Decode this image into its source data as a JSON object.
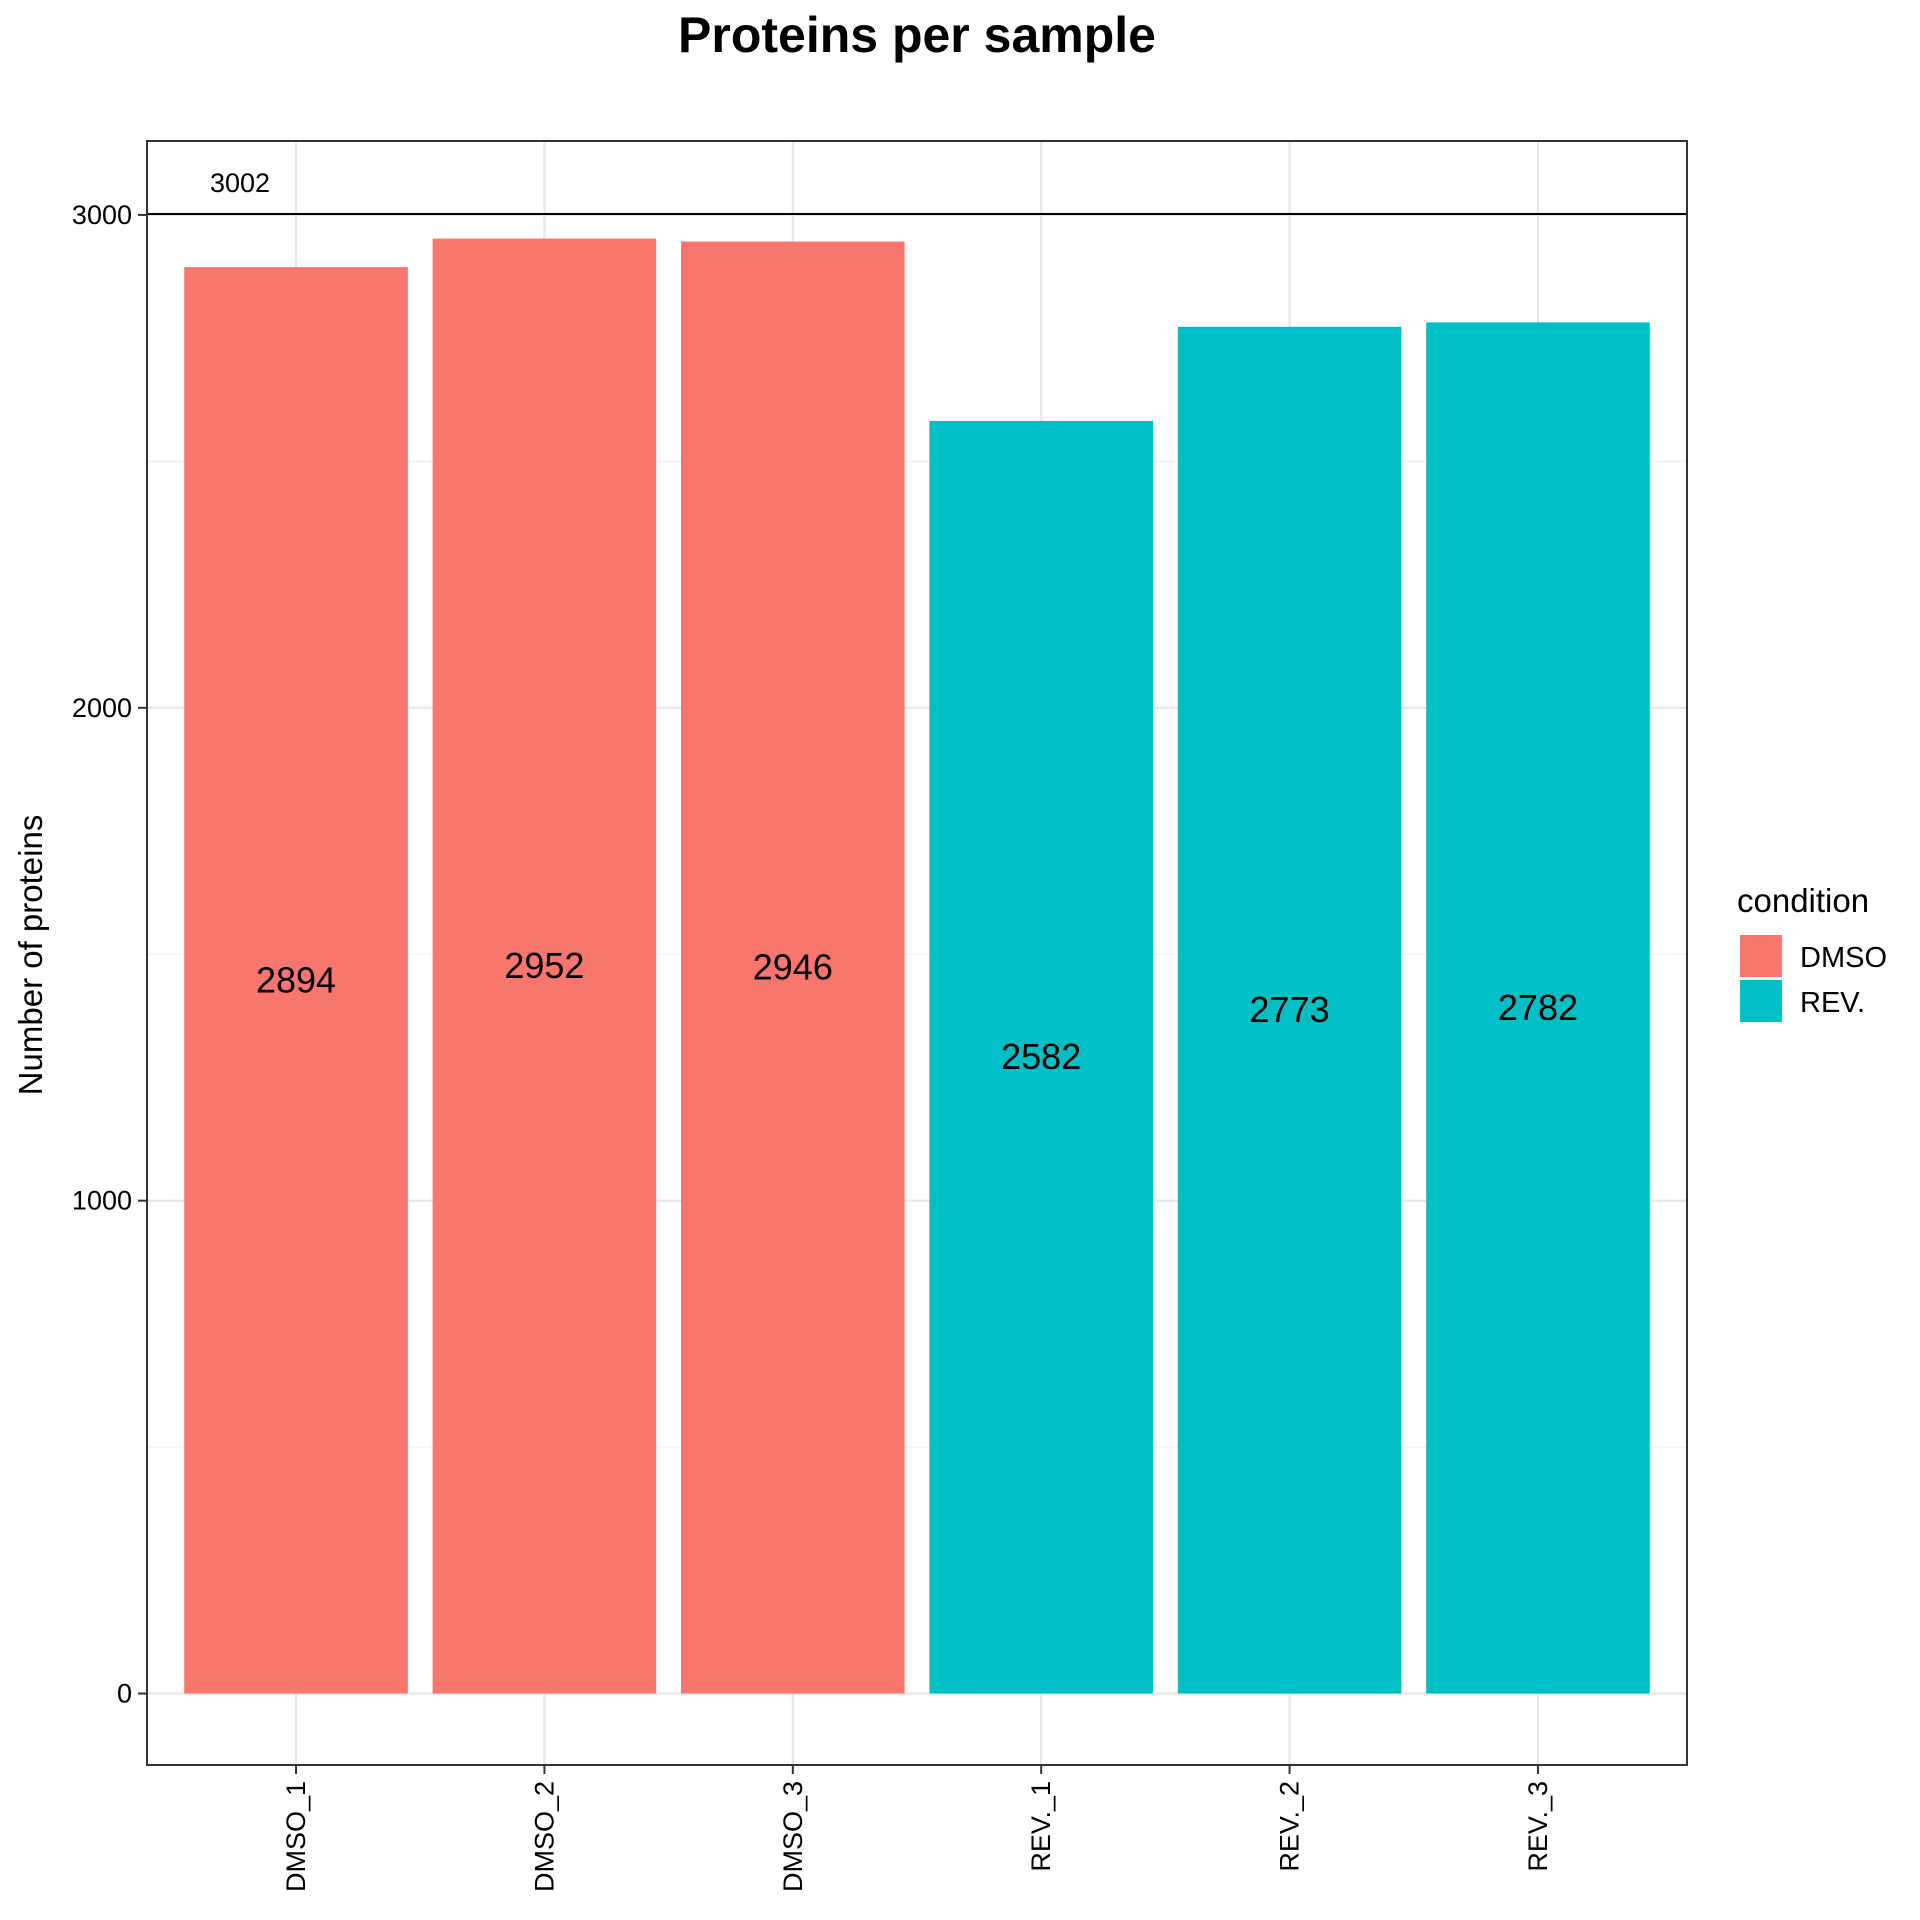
{
  "chart_data": {
    "type": "bar",
    "title": "Proteins per sample",
    "xlabel": "",
    "ylabel": "Number of proteins",
    "categories": [
      "DMSO_1",
      "DMSO_2",
      "DMSO_3",
      "REV._1",
      "REV._2",
      "REV._3"
    ],
    "values": [
      2894,
      2952,
      2946,
      2582,
      2773,
      2782
    ],
    "bar_labels": [
      "2894",
      "2952",
      "2946",
      "2582",
      "2773",
      "2782"
    ],
    "bar_conditions": [
      "DMSO",
      "DMSO",
      "DMSO",
      "REV.",
      "REV.",
      "REV."
    ],
    "ylim": [
      -145,
      3150
    ],
    "yticks": [
      0,
      1000,
      2000,
      3000
    ],
    "ytick_labels": [
      "0",
      "1000",
      "2000",
      "3000"
    ],
    "grid": true,
    "reference_line": {
      "value": 3002,
      "label": "3002"
    },
    "legend": {
      "title": "condition",
      "position": "right",
      "entries": [
        {
          "label": "DMSO",
          "color": "#F8766D"
        },
        {
          "label": "REV.",
          "color": "#00BFC4"
        }
      ]
    }
  }
}
